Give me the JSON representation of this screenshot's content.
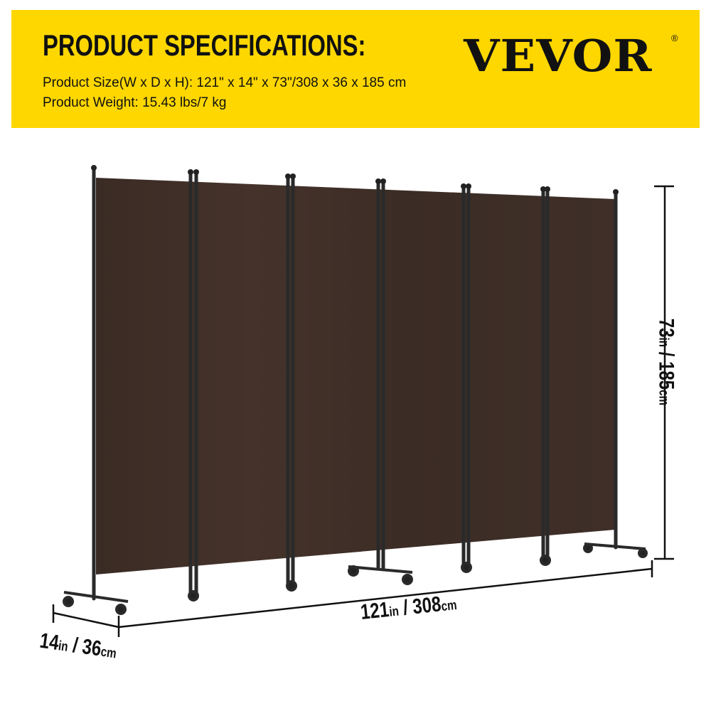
{
  "header": {
    "title": "PRODUCT SPECIFICATIONS:",
    "brand": "VEVOR",
    "brand_mark": "®",
    "size_line": "Product Size(W x D x H): 121\" x 14\" x 73\"/308 x 36 x 185 cm",
    "weight_line": "Product Weight: 15.43 lbs/7 kg"
  },
  "dimensions": {
    "width": {
      "in_value": "121",
      "in_unit": "in",
      "sep": " / ",
      "cm_value": "308",
      "cm_unit": "cm"
    },
    "depth": {
      "in_value": "14",
      "in_unit": "in",
      "sep": " / ",
      "cm_value": "36",
      "cm_unit": "cm"
    },
    "height": {
      "in_value": "73",
      "in_unit": "in",
      "sep": " / ",
      "cm_value": "185",
      "cm_unit": "cm"
    }
  },
  "colors": {
    "banner": "#fed700",
    "fabric": "#3e2e27",
    "frame": "#2a2a2a"
  }
}
